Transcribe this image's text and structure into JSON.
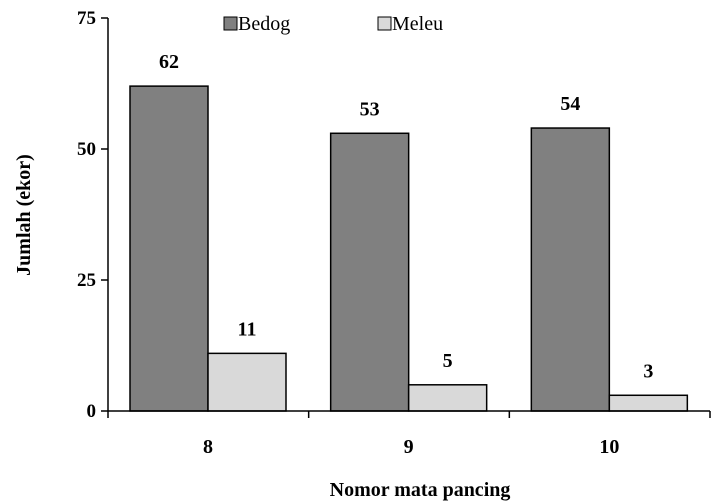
{
  "chart_data": {
    "type": "bar",
    "categories": [
      "8",
      "9",
      "10"
    ],
    "series": [
      {
        "name": "Bedog",
        "values": [
          62,
          53,
          54
        ],
        "color": "#808080"
      },
      {
        "name": "Meleu",
        "values": [
          11,
          5,
          3
        ],
        "color": "#d9d9d9"
      }
    ],
    "data_labels": [
      [
        "62",
        "53",
        "54"
      ],
      [
        "11",
        "5",
        "3"
      ]
    ],
    "xlabel": "Nomor mata pancing",
    "ylabel": "Jumlah  (ekor)",
    "ylim": [
      0,
      75
    ],
    "yticks": [
      "0",
      "25",
      "50",
      "75"
    ],
    "legend_position": "top",
    "grid": false
  }
}
